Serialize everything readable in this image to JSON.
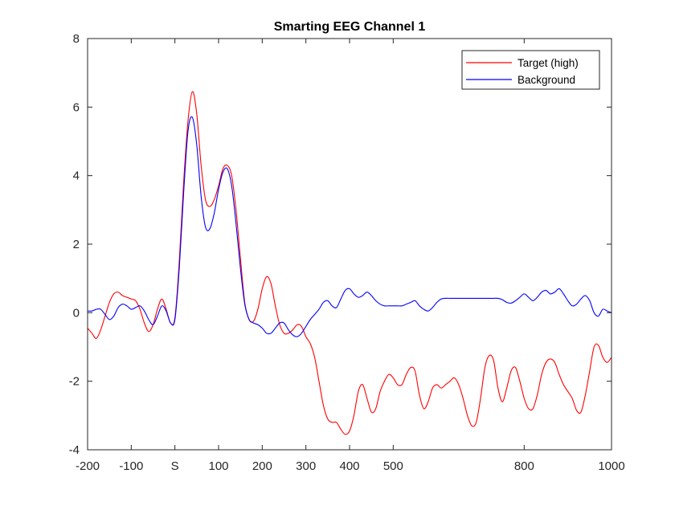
{
  "chart_data": {
    "type": "line",
    "title": "Smarting EEG Channel 1",
    "xlabel": "",
    "ylabel": "",
    "xlim": [
      -200,
      1000
    ],
    "ylim": [
      -4,
      8
    ],
    "x_ticks": [
      {
        "value": -200,
        "label": "-200"
      },
      {
        "value": -100,
        "label": "-100"
      },
      {
        "value": 0,
        "label": "S"
      },
      {
        "value": 100,
        "label": "100"
      },
      {
        "value": 200,
        "label": "200"
      },
      {
        "value": 300,
        "label": "300"
      },
      {
        "value": 400,
        "label": "400"
      },
      {
        "value": 500,
        "label": "500"
      },
      {
        "value": 800,
        "label": "800"
      },
      {
        "value": 1000,
        "label": "1000"
      }
    ],
    "y_ticks": [
      {
        "value": -4,
        "label": "-4"
      },
      {
        "value": -2,
        "label": "-2"
      },
      {
        "value": 0,
        "label": "0"
      },
      {
        "value": 2,
        "label": "2"
      },
      {
        "value": 4,
        "label": "4"
      },
      {
        "value": 6,
        "label": "6"
      },
      {
        "value": 8,
        "label": "8"
      }
    ],
    "grid": false,
    "legend_position": "top-right",
    "series": [
      {
        "name": "Target (high)",
        "color": "#ff0000",
        "x": [
          -200,
          -190,
          -180,
          -170,
          -160,
          -150,
          -140,
          -130,
          -120,
          -110,
          -100,
          -90,
          -80,
          -70,
          -60,
          -50,
          -40,
          -30,
          -20,
          -10,
          0,
          10,
          20,
          30,
          40,
          50,
          60,
          70,
          80,
          90,
          100,
          110,
          120,
          130,
          140,
          150,
          160,
          170,
          180,
          190,
          200,
          210,
          220,
          230,
          240,
          250,
          260,
          270,
          280,
          290,
          300,
          310,
          320,
          330,
          340,
          350,
          360,
          370,
          380,
          390,
          400,
          410,
          420,
          430,
          440,
          450,
          460,
          470,
          480,
          490,
          500,
          510,
          520,
          530,
          540,
          550,
          560,
          570,
          580,
          590,
          600,
          610,
          620,
          630,
          640,
          650,
          660,
          670,
          680,
          690,
          700,
          710,
          720,
          730,
          740,
          750,
          760,
          770,
          780,
          790,
          800,
          810,
          820,
          830,
          840,
          850,
          860,
          870,
          880,
          890,
          900,
          910,
          920,
          930,
          940,
          950,
          960,
          970,
          980,
          990,
          1000
        ],
        "values": [
          -0.45,
          -0.6,
          -0.75,
          -0.5,
          -0.1,
          0.3,
          0.55,
          0.6,
          0.5,
          0.45,
          0.4,
          0.35,
          0.1,
          -0.3,
          -0.55,
          -0.35,
          0.1,
          0.4,
          0.1,
          -0.3,
          -0.15,
          1.5,
          3.8,
          5.6,
          6.45,
          5.8,
          4.3,
          3.3,
          3.1,
          3.3,
          3.7,
          4.2,
          4.3,
          4.0,
          3.0,
          1.6,
          0.3,
          -0.2,
          -0.25,
          0.1,
          0.7,
          1.05,
          0.85,
          0.2,
          -0.35,
          -0.6,
          -0.6,
          -0.5,
          -0.35,
          -0.4,
          -0.7,
          -0.9,
          -1.3,
          -2.0,
          -2.7,
          -3.1,
          -3.2,
          -3.2,
          -3.4,
          -3.55,
          -3.45,
          -3.0,
          -2.3,
          -2.1,
          -2.5,
          -2.9,
          -2.8,
          -2.3,
          -2.0,
          -1.8,
          -1.9,
          -2.1,
          -2.1,
          -1.8,
          -1.6,
          -1.7,
          -2.4,
          -2.8,
          -2.6,
          -2.2,
          -2.1,
          -2.2,
          -2.1,
          -2.0,
          -1.9,
          -2.1,
          -2.5,
          -3.0,
          -3.3,
          -3.2,
          -2.5,
          -1.6,
          -1.25,
          -1.4,
          -2.2,
          -2.6,
          -2.2,
          -1.7,
          -1.6,
          -2.0,
          -2.5,
          -2.8,
          -2.8,
          -2.4,
          -1.8,
          -1.45,
          -1.35,
          -1.45,
          -1.8,
          -2.1,
          -2.3,
          -2.5,
          -2.85,
          -2.9,
          -2.4,
          -1.7,
          -1.0,
          -0.95,
          -1.3,
          -1.45,
          -1.3
        ]
      },
      {
        "name": "Background",
        "color": "#0000ff",
        "x": [
          -200,
          -190,
          -180,
          -170,
          -160,
          -150,
          -140,
          -130,
          -120,
          -110,
          -100,
          -90,
          -80,
          -70,
          -60,
          -50,
          -40,
          -30,
          -20,
          -10,
          0,
          10,
          20,
          30,
          40,
          50,
          60,
          70,
          80,
          90,
          100,
          110,
          120,
          130,
          140,
          150,
          160,
          170,
          180,
          190,
          200,
          210,
          220,
          230,
          240,
          250,
          260,
          270,
          280,
          290,
          300,
          310,
          320,
          330,
          340,
          350,
          360,
          370,
          380,
          390,
          400,
          410,
          420,
          430,
          440,
          450,
          460,
          470,
          480,
          490,
          500,
          510,
          520,
          530,
          540,
          550,
          560,
          570,
          580,
          590,
          600,
          610,
          620,
          630,
          640,
          650,
          660,
          670,
          680,
          690,
          700,
          710,
          720,
          730,
          740,
          750,
          760,
          770,
          780,
          790,
          800,
          810,
          820,
          830,
          840,
          850,
          860,
          870,
          880,
          890,
          900,
          910,
          920,
          930,
          940,
          950,
          960,
          970,
          980,
          990,
          1000
        ],
        "values": [
          0.05,
          0.05,
          0.1,
          0.1,
          -0.05,
          -0.2,
          -0.1,
          0.15,
          0.25,
          0.2,
          0.1,
          0.15,
          0.2,
          0.05,
          -0.2,
          -0.35,
          -0.1,
          0.2,
          0.05,
          -0.3,
          -0.2,
          1.3,
          3.5,
          5.3,
          5.7,
          4.9,
          3.4,
          2.5,
          2.45,
          2.9,
          3.6,
          4.1,
          4.2,
          3.7,
          2.6,
          1.3,
          0.25,
          -0.2,
          -0.3,
          -0.35,
          -0.45,
          -0.6,
          -0.6,
          -0.45,
          -0.3,
          -0.3,
          -0.5,
          -0.65,
          -0.7,
          -0.6,
          -0.4,
          -0.2,
          -0.05,
          0.1,
          0.3,
          0.35,
          0.2,
          0.15,
          0.4,
          0.65,
          0.7,
          0.55,
          0.45,
          0.5,
          0.6,
          0.5,
          0.35,
          0.25,
          0.2,
          0.2,
          0.2,
          0.2,
          0.2,
          0.25,
          0.3,
          0.35,
          0.2,
          0.1,
          0.05,
          0.15,
          0.3,
          0.4,
          0.42,
          0.42,
          0.42,
          0.42,
          0.42,
          0.42,
          0.42,
          0.42,
          0.42,
          0.42,
          0.42,
          0.42,
          0.42,
          0.38,
          0.3,
          0.28,
          0.35,
          0.45,
          0.55,
          0.45,
          0.35,
          0.45,
          0.6,
          0.65,
          0.55,
          0.6,
          0.7,
          0.55,
          0.35,
          0.2,
          0.25,
          0.4,
          0.5,
          0.35,
          0.0,
          -0.1,
          0.1,
          0.05,
          0.0
        ]
      }
    ]
  }
}
